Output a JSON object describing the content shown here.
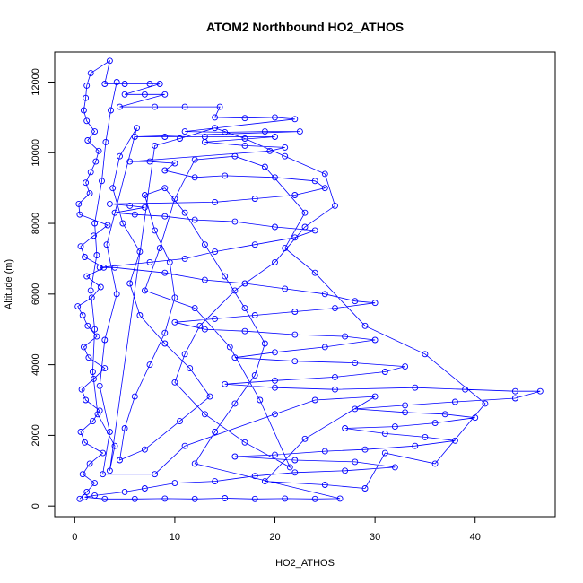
{
  "chart_data": {
    "type": "scatter",
    "title": "ATOM2 Northbound HO2_ATHOS",
    "xlabel": "HO2_ATHOS",
    "ylabel": "Altitude (m)",
    "xlim": [
      -2,
      48
    ],
    "ylim": [
      -300,
      12850
    ],
    "xticks": [
      0,
      10,
      20,
      30,
      40
    ],
    "yticks": [
      0,
      2000,
      4000,
      6000,
      8000,
      10000,
      12000
    ],
    "grid": false,
    "legend": "none",
    "point_color": "#0000ff",
    "line_color": "#0000ff",
    "marker": "open-circle",
    "connected": true,
    "series": [
      {
        "points": [
          [
            0.5,
            200
          ],
          [
            1.2,
            400
          ],
          [
            2.0,
            650
          ],
          [
            0.8,
            900
          ],
          [
            1.5,
            1200
          ],
          [
            2.8,
            1500
          ],
          [
            1.0,
            1800
          ],
          [
            0.6,
            2100
          ],
          [
            1.8,
            2400
          ],
          [
            2.5,
            2700
          ],
          [
            1.1,
            3000
          ],
          [
            0.7,
            3300
          ],
          [
            1.9,
            3600
          ],
          [
            3.0,
            3900
          ],
          [
            1.4,
            4200
          ],
          [
            0.9,
            4500
          ],
          [
            2.2,
            4800
          ],
          [
            1.3,
            5100
          ],
          [
            0.8,
            5400
          ],
          [
            0.3,
            5650
          ],
          [
            1.7,
            5900
          ],
          [
            2.6,
            6200
          ],
          [
            1.2,
            6500
          ],
          [
            2.9,
            6750
          ],
          [
            1.0,
            7050
          ],
          [
            0.6,
            7350
          ],
          [
            1.9,
            7650
          ],
          [
            3.3,
            7950
          ],
          [
            0.5,
            8250
          ],
          [
            0.4,
            8550
          ],
          [
            1.5,
            8850
          ],
          [
            1.1,
            9150
          ],
          [
            1.6,
            9450
          ],
          [
            2.1,
            9750
          ],
          [
            2.4,
            10050
          ],
          [
            1.3,
            10350
          ],
          [
            2.0,
            10600
          ],
          [
            1.2,
            10900
          ],
          [
            0.9,
            11200
          ],
          [
            1.1,
            11550
          ],
          [
            1.2,
            11900
          ],
          [
            1.6,
            12250
          ],
          [
            3.5,
            12600
          ],
          [
            3.0,
            11950
          ],
          [
            5.0,
            11950
          ],
          [
            7.5,
            11950
          ],
          [
            8.5,
            11950
          ],
          [
            5.0,
            11650
          ],
          [
            7.0,
            11650
          ],
          [
            9.0,
            11650
          ],
          [
            4.5,
            11300
          ],
          [
            8.0,
            11300
          ],
          [
            11.0,
            11300
          ],
          [
            14.5,
            11300
          ],
          [
            14.0,
            11000
          ],
          [
            17.0,
            10980
          ],
          [
            20.0,
            11000
          ],
          [
            22.0,
            10950
          ],
          [
            11.0,
            10600
          ],
          [
            15.0,
            10580
          ],
          [
            19.0,
            10600
          ],
          [
            22.5,
            10600
          ],
          [
            6.0,
            10450
          ],
          [
            9.0,
            10450
          ],
          [
            13.0,
            10450
          ],
          [
            20.0,
            10450
          ],
          [
            13.0,
            10300
          ],
          [
            17.0,
            10200
          ],
          [
            21.0,
            10150
          ],
          [
            19.5,
            10050
          ],
          [
            5.5,
            9750
          ],
          [
            7.5,
            9750
          ],
          [
            10.0,
            9700
          ],
          [
            9.0,
            9500
          ],
          [
            12.0,
            9300
          ],
          [
            15.0,
            9350
          ],
          [
            20.0,
            9300
          ],
          [
            24.0,
            9200
          ],
          [
            25.0,
            9000
          ],
          [
            22.0,
            8800
          ],
          [
            18.0,
            8700
          ],
          [
            14.0,
            8600
          ],
          [
            3.5,
            8550
          ],
          [
            5.5,
            8500
          ],
          [
            7.0,
            8450
          ],
          [
            4.0,
            8300
          ],
          [
            6.0,
            8250
          ],
          [
            9.0,
            8200
          ],
          [
            12.0,
            8100
          ],
          [
            16.0,
            8050
          ],
          [
            20.0,
            7900
          ],
          [
            24.0,
            7800
          ],
          [
            22.0,
            7600
          ],
          [
            18.0,
            7400
          ],
          [
            14.0,
            7200
          ],
          [
            11.0,
            7000
          ],
          [
            7.5,
            6900
          ],
          [
            2.5,
            6750
          ],
          [
            4.0,
            6750
          ],
          [
            9.0,
            6600
          ],
          [
            13.0,
            6400
          ],
          [
            17.0,
            6300
          ],
          [
            21.0,
            6150
          ],
          [
            25.0,
            6000
          ],
          [
            28.0,
            5800
          ],
          [
            30.0,
            5750
          ],
          [
            26.0,
            5600
          ],
          [
            22.0,
            5500
          ],
          [
            18.0,
            5400
          ],
          [
            14.0,
            5300
          ],
          [
            10.0,
            5200
          ],
          [
            13.0,
            5000
          ],
          [
            17.0,
            4950
          ],
          [
            22.0,
            4850
          ],
          [
            27.0,
            4800
          ],
          [
            30.0,
            4700
          ],
          [
            25.0,
            4500
          ],
          [
            20.0,
            4350
          ],
          [
            16.0,
            4200
          ],
          [
            22.0,
            4100
          ],
          [
            28.0,
            4050
          ],
          [
            33.0,
            3950
          ],
          [
            31.0,
            3800
          ],
          [
            26.0,
            3650
          ],
          [
            20.0,
            3550
          ],
          [
            15.0,
            3450
          ],
          [
            20.0,
            3350
          ],
          [
            26.0,
            3300
          ],
          [
            34.0,
            3350
          ],
          [
            39.0,
            3300
          ],
          [
            44.0,
            3250
          ],
          [
            46.5,
            3250
          ],
          [
            44.0,
            3050
          ],
          [
            38.0,
            2950
          ],
          [
            33.0,
            2850
          ],
          [
            28.0,
            2750
          ],
          [
            33.0,
            2650
          ],
          [
            37.0,
            2600
          ],
          [
            40.0,
            2500
          ],
          [
            36.0,
            2350
          ],
          [
            32.0,
            2250
          ],
          [
            27.0,
            2200
          ],
          [
            31.0,
            2050
          ],
          [
            35.0,
            1950
          ],
          [
            38.0,
            1850
          ],
          [
            34.0,
            1700
          ],
          [
            29.0,
            1600
          ],
          [
            25.0,
            1550
          ],
          [
            20.0,
            1450
          ],
          [
            16.0,
            1400
          ],
          [
            22.0,
            1300
          ],
          [
            28.0,
            1250
          ],
          [
            32.0,
            1100
          ],
          [
            27.0,
            1000
          ],
          [
            22.0,
            950
          ],
          [
            18.0,
            850
          ],
          [
            14.0,
            700
          ],
          [
            10.0,
            650
          ],
          [
            7.0,
            500
          ],
          [
            5.0,
            400
          ],
          [
            2.0,
            300
          ],
          [
            1.0,
            250
          ],
          [
            3.0,
            200
          ],
          [
            6.0,
            200
          ],
          [
            9.0,
            210
          ],
          [
            12.0,
            200
          ],
          [
            15.0,
            220
          ],
          [
            18.0,
            200
          ],
          [
            21.0,
            210
          ],
          [
            24.0,
            200
          ],
          [
            26.5,
            210
          ],
          [
            12.0,
            1200
          ],
          [
            14.0,
            2100
          ],
          [
            16.0,
            2900
          ],
          [
            18.0,
            3700
          ],
          [
            19.0,
            4600
          ],
          [
            17.0,
            5600
          ],
          [
            15.0,
            6500
          ],
          [
            13.0,
            7400
          ],
          [
            11.0,
            8300
          ],
          [
            9.0,
            9000
          ],
          [
            7.0,
            8800
          ],
          [
            8.0,
            7800
          ],
          [
            9.5,
            6900
          ],
          [
            10.0,
            5900
          ],
          [
            9.0,
            4900
          ],
          [
            7.5,
            4000
          ],
          [
            6.0,
            3100
          ],
          [
            5.0,
            2200
          ],
          [
            4.5,
            1300
          ],
          [
            7.0,
            1600
          ],
          [
            10.5,
            2400
          ],
          [
            13.5,
            3100
          ],
          [
            11.5,
            3900
          ],
          [
            9.0,
            4600
          ],
          [
            6.5,
            5400
          ],
          [
            5.5,
            6300
          ],
          [
            6.5,
            7200
          ],
          [
            4.8,
            8000
          ],
          [
            3.8,
            9000
          ],
          [
            4.5,
            9900
          ],
          [
            6.2,
            10700
          ],
          [
            3.2,
            7400
          ],
          [
            4.2,
            6000
          ],
          [
            3.0,
            4700
          ],
          [
            2.5,
            3400
          ],
          [
            3.5,
            2100
          ],
          [
            2.8,
            900
          ],
          [
            8.0,
            900
          ],
          [
            11.0,
            1700
          ],
          [
            20.0,
            2600
          ],
          [
            24.0,
            3000
          ],
          [
            30.0,
            3100
          ],
          [
            23.0,
            1900
          ],
          [
            19.0,
            700
          ],
          [
            25.0,
            600
          ],
          [
            29.0,
            500
          ],
          [
            31.0,
            1500
          ],
          [
            36.0,
            1200
          ],
          [
            41.0,
            2900
          ],
          [
            35.0,
            4300
          ],
          [
            29.0,
            5100
          ],
          [
            24.0,
            6600
          ],
          [
            21.0,
            7300
          ],
          [
            23.0,
            8300
          ],
          [
            19.0,
            9600
          ],
          [
            16.0,
            9900
          ],
          [
            12.0,
            9800
          ],
          [
            10.0,
            8700
          ],
          [
            8.5,
            7300
          ],
          [
            7.0,
            6100
          ],
          [
            12.0,
            5600
          ],
          [
            15.5,
            4500
          ],
          [
            18.5,
            3000
          ],
          [
            21.5,
            1100
          ],
          [
            17.0,
            1800
          ],
          [
            13.0,
            2600
          ],
          [
            10.0,
            3500
          ],
          [
            11.0,
            4300
          ],
          [
            12.5,
            5100
          ],
          [
            16.0,
            6100
          ],
          [
            20.0,
            6900
          ],
          [
            23.0,
            7900
          ],
          [
            26.0,
            8500
          ],
          [
            25.0,
            9400
          ],
          [
            21.0,
            9900
          ],
          [
            17.0,
            10400
          ],
          [
            14.0,
            10700
          ],
          [
            10.5,
            10400
          ],
          [
            8.0,
            10200
          ],
          [
            3.5,
            1000
          ],
          [
            4.0,
            1700
          ],
          [
            2.3,
            2600
          ],
          [
            1.8,
            3800
          ],
          [
            2.0,
            5000
          ],
          [
            1.6,
            6100
          ],
          [
            2.2,
            7100
          ],
          [
            2.0,
            8000
          ],
          [
            2.7,
            9200
          ],
          [
            3.1,
            10300
          ],
          [
            3.6,
            11200
          ],
          [
            4.2,
            12000
          ]
        ]
      }
    ]
  }
}
